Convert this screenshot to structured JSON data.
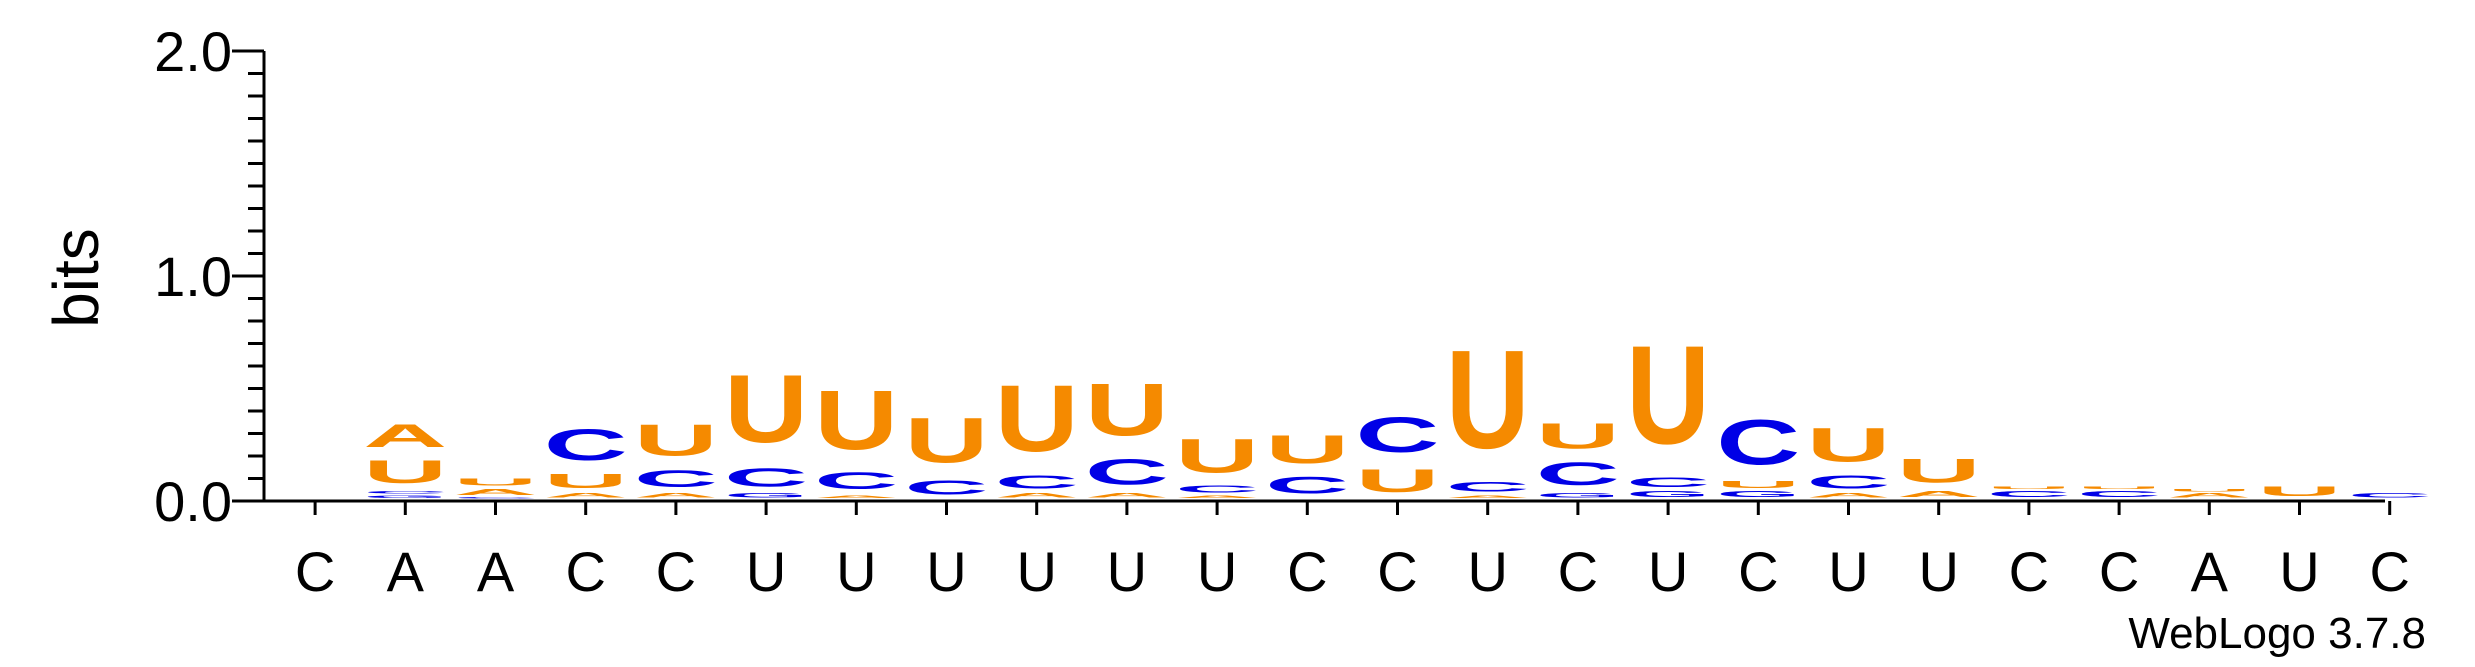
{
  "chart_data": {
    "type": "sequence-logo",
    "ylabel": "bits",
    "ylim": [
      0,
      2.0
    ],
    "y_ticks": [
      "0.0",
      "1.0",
      "2.0"
    ],
    "x_labels": [
      "C",
      "A",
      "A",
      "C",
      "C",
      "U",
      "U",
      "U",
      "U",
      "U",
      "U",
      "C",
      "C",
      "U",
      "C",
      "U",
      "C",
      "U",
      "U",
      "C",
      "C",
      "A",
      "U",
      "C"
    ],
    "letter_colors": {
      "A": "#f58a00",
      "U": "#f58a00",
      "C": "#0000e6",
      "G": "#0000e6"
    },
    "columns": [
      {
        "stack": []
      },
      {
        "stack": [
          [
            "G",
            0.02
          ],
          [
            "C",
            0.02
          ],
          [
            "U",
            0.16
          ],
          [
            "A",
            0.16
          ]
        ]
      },
      {
        "stack": [
          [
            "C",
            0.01
          ],
          [
            "A",
            0.04
          ],
          [
            "U",
            0.05
          ]
        ]
      },
      {
        "stack": [
          [
            "A",
            0.03
          ],
          [
            "U",
            0.1
          ],
          [
            "C",
            0.22
          ]
        ]
      },
      {
        "stack": [
          [
            "A",
            0.03
          ],
          [
            "C",
            0.12
          ],
          [
            "U",
            0.22
          ]
        ]
      },
      {
        "stack": [
          [
            "G",
            0.03
          ],
          [
            "C",
            0.13
          ],
          [
            "U",
            0.48
          ]
        ]
      },
      {
        "stack": [
          [
            "A",
            0.02
          ],
          [
            "C",
            0.12
          ],
          [
            "U",
            0.42
          ]
        ]
      },
      {
        "stack": [
          [
            "C",
            0.1
          ],
          [
            "U",
            0.32
          ]
        ]
      },
      {
        "stack": [
          [
            "A",
            0.03
          ],
          [
            "C",
            0.09
          ],
          [
            "U",
            0.47
          ]
        ]
      },
      {
        "stack": [
          [
            "A",
            0.03
          ],
          [
            "C",
            0.18
          ],
          [
            "U",
            0.37
          ]
        ]
      },
      {
        "stack": [
          [
            "A",
            0.02
          ],
          [
            "C",
            0.05
          ],
          [
            "U",
            0.24
          ]
        ]
      },
      {
        "stack": [
          [
            "C",
            0.12
          ],
          [
            "U",
            0.2
          ]
        ]
      },
      {
        "stack": [
          [
            "U",
            0.16
          ],
          [
            "C",
            0.25
          ]
        ]
      },
      {
        "stack": [
          [
            "A",
            0.02
          ],
          [
            "C",
            0.07
          ],
          [
            "U",
            0.7
          ]
        ]
      },
      {
        "stack": [
          [
            "G",
            0.03
          ],
          [
            "C",
            0.16
          ],
          [
            "U",
            0.18
          ]
        ]
      },
      {
        "stack": [
          [
            "G",
            0.04
          ],
          [
            "C",
            0.07
          ],
          [
            "U",
            0.7
          ]
        ]
      },
      {
        "stack": [
          [
            "G",
            0.04
          ],
          [
            "U",
            0.05
          ],
          [
            "C",
            0.32
          ]
        ]
      },
      {
        "stack": [
          [
            "A",
            0.03
          ],
          [
            "C",
            0.09
          ],
          [
            "U",
            0.24
          ]
        ]
      },
      {
        "stack": [
          [
            "A",
            0.04
          ],
          [
            "U",
            0.17
          ]
        ]
      },
      {
        "stack": [
          [
            "C",
            0.04
          ],
          [
            "U",
            0.02
          ]
        ]
      },
      {
        "stack": [
          [
            "C",
            0.04
          ],
          [
            "U",
            0.02
          ]
        ]
      },
      {
        "stack": [
          [
            "A",
            0.03
          ],
          [
            "U",
            0.02
          ]
        ]
      },
      {
        "stack": [
          [
            "U",
            0.07
          ]
        ]
      },
      {
        "stack": [
          [
            "C",
            0.03
          ]
        ]
      }
    ]
  },
  "footer": {
    "credit": "WebLogo 3.7.8"
  }
}
